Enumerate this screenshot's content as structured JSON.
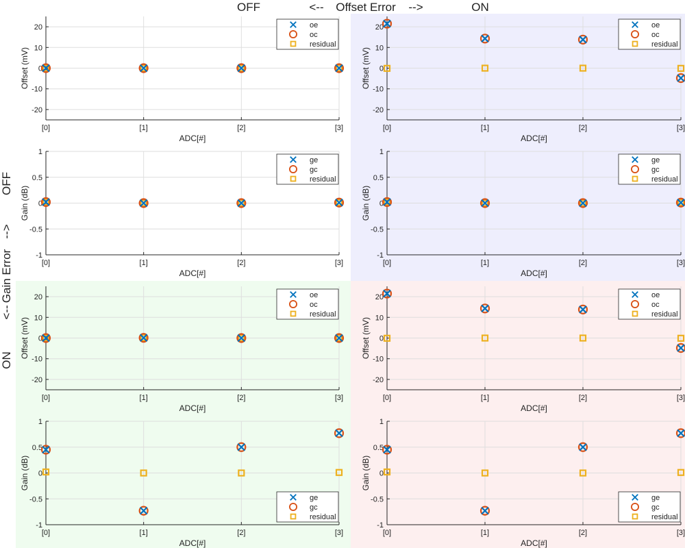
{
  "figure": {
    "top_labels": [
      "OFF",
      "<--",
      "Offset Error",
      "-->",
      "ON"
    ],
    "side_labels": [
      "OFF",
      "-->",
      "Gain Error",
      "<--",
      "ON"
    ]
  },
  "colors": {
    "estimate": "#0072BD",
    "corrected": "#D95319",
    "residual": "#EDB120",
    "grid": "#dedede",
    "axis": "#262626",
    "bg_q1": "#ffffff",
    "bg_q2": "#eeeefd",
    "bg_q3": "#effcef",
    "bg_q4": "#fdefef"
  },
  "chart_data": [
    {
      "panel": "offset-off-off",
      "type": "scatter",
      "title": "",
      "xlabel": "ADC[#]",
      "ylabel": "Offset (mV)",
      "categories": [
        "[0]",
        "[1]",
        "[2]",
        "[3]"
      ],
      "x": [
        0,
        1,
        2,
        3
      ],
      "xlim": [
        0,
        3
      ],
      "ylim": [
        -25,
        25
      ],
      "yticks": [
        20,
        10,
        0,
        -10,
        -20
      ],
      "yticklabels": [
        "20",
        "10",
        "0",
        "-10",
        "-20"
      ],
      "grid": true,
      "legend": "top-right",
      "series": [
        {
          "name": "oe",
          "marker": "x",
          "values": [
            0,
            0,
            0,
            0
          ]
        },
        {
          "name": "oc",
          "marker": "o",
          "values": [
            0,
            0,
            0,
            0
          ]
        },
        {
          "name": "residual",
          "marker": "s",
          "values": [
            0,
            0,
            0,
            0
          ]
        }
      ]
    },
    {
      "panel": "offset-on-off",
      "type": "scatter",
      "title": "",
      "xlabel": "ADC[#]",
      "ylabel": "Offset (mV)",
      "categories": [
        "[0]",
        "[1]",
        "[2]",
        "[3]"
      ],
      "x": [
        0,
        1,
        2,
        3
      ],
      "xlim": [
        0,
        3
      ],
      "ylim": [
        -25,
        25
      ],
      "yticks": [
        20,
        10,
        0,
        -10,
        -20
      ],
      "yticklabels": [
        "20",
        "10",
        "0",
        "-10",
        "-20"
      ],
      "grid": true,
      "legend": "top-right",
      "series": [
        {
          "name": "oe",
          "marker": "x",
          "values": [
            21.5,
            14.3,
            13.8,
            -4.8
          ]
        },
        {
          "name": "oc",
          "marker": "o",
          "values": [
            21.5,
            14.3,
            13.8,
            -4.8
          ]
        },
        {
          "name": "residual",
          "marker": "s",
          "values": [
            -0.1,
            0,
            0,
            -0.1
          ]
        }
      ]
    },
    {
      "panel": "gain-off-off",
      "type": "scatter",
      "title": "",
      "xlabel": "ADC[#]",
      "ylabel": "Gain (dB)",
      "categories": [
        "[0]",
        "[1]",
        "[2]",
        "[3]"
      ],
      "x": [
        0,
        1,
        2,
        3
      ],
      "xlim": [
        0,
        3
      ],
      "ylim": [
        -1,
        1
      ],
      "yticks": [
        1,
        0.5,
        0,
        -0.5,
        -1
      ],
      "yticklabels": [
        "1",
        "0.5",
        "0",
        "-0.5",
        "-1"
      ],
      "grid": true,
      "legend": "top-right",
      "series": [
        {
          "name": "ge",
          "marker": "x",
          "values": [
            0.02,
            0,
            0,
            0.01
          ]
        },
        {
          "name": "gc",
          "marker": "o",
          "values": [
            0.02,
            0,
            0,
            0.01
          ]
        },
        {
          "name": "residual",
          "marker": "s",
          "values": [
            0.02,
            0,
            0,
            0.01
          ]
        }
      ]
    },
    {
      "panel": "gain-on-off",
      "type": "scatter",
      "title": "",
      "xlabel": "ADC[#]",
      "ylabel": "Gain (dB)",
      "categories": [
        "[0]",
        "[1]",
        "[2]",
        "[3]"
      ],
      "x": [
        0,
        1,
        2,
        3
      ],
      "xlim": [
        0,
        3
      ],
      "ylim": [
        -1,
        1
      ],
      "yticks": [
        1,
        0.5,
        0,
        -0.5,
        -1
      ],
      "yticklabels": [
        "1",
        "0.5",
        "0",
        "-0.5",
        "-1"
      ],
      "grid": true,
      "legend": "top-right",
      "series": [
        {
          "name": "ge",
          "marker": "x",
          "values": [
            0.02,
            0,
            0,
            0.01
          ]
        },
        {
          "name": "gc",
          "marker": "o",
          "values": [
            0.02,
            0,
            0,
            0.01
          ]
        },
        {
          "name": "residual",
          "marker": "s",
          "values": [
            0.02,
            0,
            0,
            0.01
          ]
        }
      ]
    },
    {
      "panel": "offset-off-on",
      "type": "scatter",
      "title": "",
      "xlabel": "ADC[#]",
      "ylabel": "Offset (mV)",
      "categories": [
        "[0]",
        "[1]",
        "[2]",
        "[3]"
      ],
      "x": [
        0,
        1,
        2,
        3
      ],
      "xlim": [
        0,
        3
      ],
      "ylim": [
        -25,
        25
      ],
      "yticks": [
        20,
        10,
        0,
        -10,
        -20
      ],
      "yticklabels": [
        "20",
        "10",
        "0",
        "-10",
        "-20"
      ],
      "grid": true,
      "legend": "top-right",
      "series": [
        {
          "name": "oe",
          "marker": "x",
          "values": [
            0,
            0.1,
            0,
            0
          ]
        },
        {
          "name": "oc",
          "marker": "o",
          "values": [
            0,
            0.1,
            0,
            0
          ]
        },
        {
          "name": "residual",
          "marker": "s",
          "values": [
            0,
            0.1,
            0,
            0
          ]
        }
      ]
    },
    {
      "panel": "offset-on-on",
      "type": "scatter",
      "title": "",
      "xlabel": "ADC[#]",
      "ylabel": "Offset (mV)",
      "categories": [
        "[0]",
        "[1]",
        "[2]",
        "[3]"
      ],
      "x": [
        0,
        1,
        2,
        3
      ],
      "xlim": [
        0,
        3
      ],
      "ylim": [
        -25,
        25
      ],
      "yticks": [
        20,
        10,
        0,
        -10,
        -20
      ],
      "yticklabels": [
        "20",
        "10",
        "0",
        "-10",
        "-20"
      ],
      "grid": true,
      "legend": "top-right",
      "series": [
        {
          "name": "oe",
          "marker": "x",
          "values": [
            21.5,
            14.3,
            13.8,
            -4.8
          ]
        },
        {
          "name": "oc",
          "marker": "o",
          "values": [
            21.5,
            14.3,
            13.8,
            -4.8
          ]
        },
        {
          "name": "residual",
          "marker": "s",
          "values": [
            -0.1,
            0,
            0,
            -0.1
          ]
        }
      ]
    },
    {
      "panel": "gain-off-on",
      "type": "scatter",
      "title": "",
      "xlabel": "ADC[#]",
      "ylabel": "Gain (dB)",
      "categories": [
        "[0]",
        "[1]",
        "[2]",
        "[3]"
      ],
      "x": [
        0,
        1,
        2,
        3
      ],
      "xlim": [
        0,
        3
      ],
      "ylim": [
        -1,
        1
      ],
      "yticks": [
        1,
        0.5,
        0,
        -0.5,
        -1
      ],
      "yticklabels": [
        "1",
        "0.5",
        "0",
        "-0.5",
        "-1"
      ],
      "grid": true,
      "legend": "bottom-right",
      "series": [
        {
          "name": "ge",
          "marker": "x",
          "values": [
            0.45,
            -0.73,
            0.5,
            0.77
          ]
        },
        {
          "name": "gc",
          "marker": "o",
          "values": [
            0.45,
            -0.73,
            0.5,
            0.77
          ]
        },
        {
          "name": "residual",
          "marker": "s",
          "values": [
            0.02,
            0,
            0,
            0.01
          ]
        }
      ]
    },
    {
      "panel": "gain-on-on",
      "type": "scatter",
      "title": "",
      "xlabel": "ADC[#]",
      "ylabel": "Gain (dB)",
      "categories": [
        "[0]",
        "[1]",
        "[2]",
        "[3]"
      ],
      "x": [
        0,
        1,
        2,
        3
      ],
      "xlim": [
        0,
        3
      ],
      "ylim": [
        -1,
        1
      ],
      "yticks": [
        1,
        0.5,
        0,
        -0.5,
        -1
      ],
      "yticklabels": [
        "1",
        "0.5",
        "0",
        "-0.5",
        "-1"
      ],
      "grid": true,
      "legend": "bottom-right",
      "series": [
        {
          "name": "ge",
          "marker": "x",
          "values": [
            0.45,
            -0.73,
            0.5,
            0.77
          ]
        },
        {
          "name": "gc",
          "marker": "o",
          "values": [
            0.45,
            -0.73,
            0.5,
            0.77
          ]
        },
        {
          "name": "residual",
          "marker": "s",
          "values": [
            0.02,
            0,
            0,
            0.01
          ]
        }
      ]
    }
  ]
}
